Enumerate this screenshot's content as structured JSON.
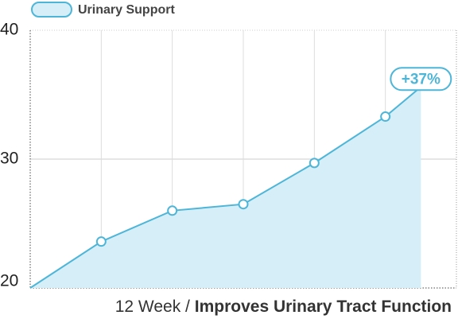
{
  "chart_data": {
    "type": "area",
    "series": [
      {
        "name": "Urinary Support",
        "color": "#4db6d8",
        "fill": "#d6eef7",
        "x": [
          0,
          2,
          4,
          6,
          8,
          10,
          11
        ],
        "values": [
          20,
          23.6,
          26.0,
          26.5,
          29.7,
          33.3,
          35.6
        ]
      }
    ],
    "xlim": [
      0,
      12
    ],
    "ylim": [
      20,
      40
    ],
    "yticks": [
      20,
      30,
      40
    ],
    "xlabel_prefix": "12 Week /",
    "xlabel": "Improves Urinary Tract Function",
    "annotation": "+37%",
    "grid": true,
    "legend": "top-left"
  }
}
